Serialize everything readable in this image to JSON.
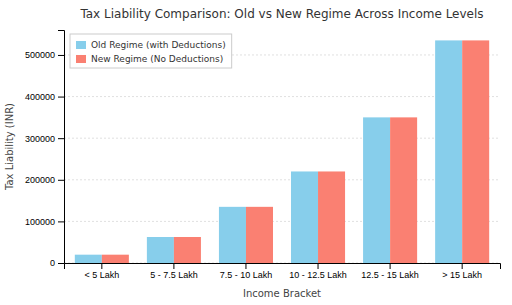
{
  "chart_data": {
    "type": "bar",
    "title": "Tax Liability Comparison: Old vs New Regime Across Income Levels",
    "x_label": "Income Bracket",
    "y_label": "Tax Liability (INR)",
    "categories": [
      "< 5 Lakh",
      "5 - 7.5 Lakh",
      "7.5 - 10 Lakh",
      "10 - 12.5 Lakh",
      "12.5 - 15 Lakh",
      "> 15 Lakh"
    ],
    "series": [
      {
        "name": "Old Regime (with Deductions)",
        "color": "#87CEEB",
        "values": [
          20000,
          62500,
          135000,
          220000,
          350000,
          535000
        ]
      },
      {
        "name": "New Regime (No Deductions)",
        "color": "#FA8072",
        "values": [
          20000,
          62500,
          135000,
          220000,
          350000,
          535000
        ]
      }
    ],
    "ylim": [
      0,
      560000
    ],
    "yticks": [
      0,
      100000,
      200000,
      300000,
      400000,
      500000
    ],
    "grid": true,
    "legend": "upper-left"
  }
}
